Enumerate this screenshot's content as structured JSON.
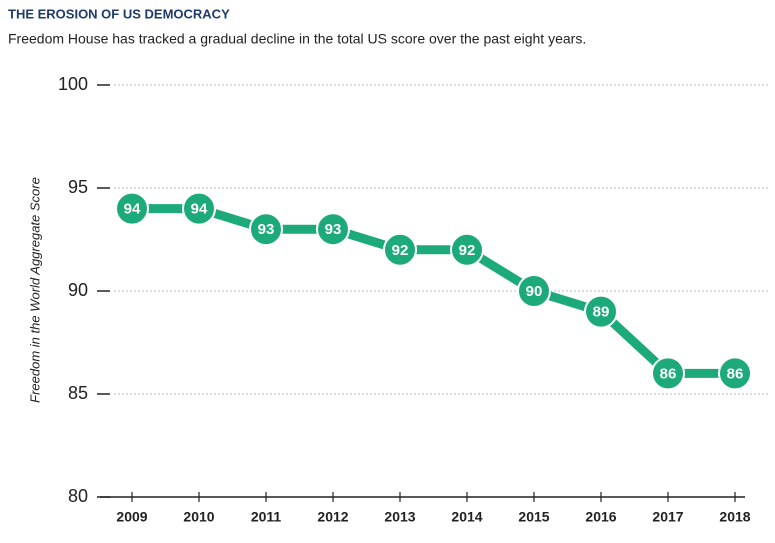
{
  "chart_data": {
    "type": "line",
    "title": "THE EROSION OF US DEMOCRACY",
    "subtitle": "Freedom House has tracked a gradual decline in the total US score over the past eight years.",
    "y_label": "Freedom in the World Aggregate Score",
    "categories": [
      "2009",
      "2010",
      "2011",
      "2012",
      "2013",
      "2014",
      "2015",
      "2016",
      "2017",
      "2018"
    ],
    "values": [
      94,
      94,
      93,
      93,
      92,
      92,
      90,
      89,
      86,
      86
    ],
    "color": "#1daa7b",
    "ylim": [
      80,
      100
    ],
    "yticks": [
      80,
      85,
      90,
      95,
      100
    ],
    "grid": true
  }
}
